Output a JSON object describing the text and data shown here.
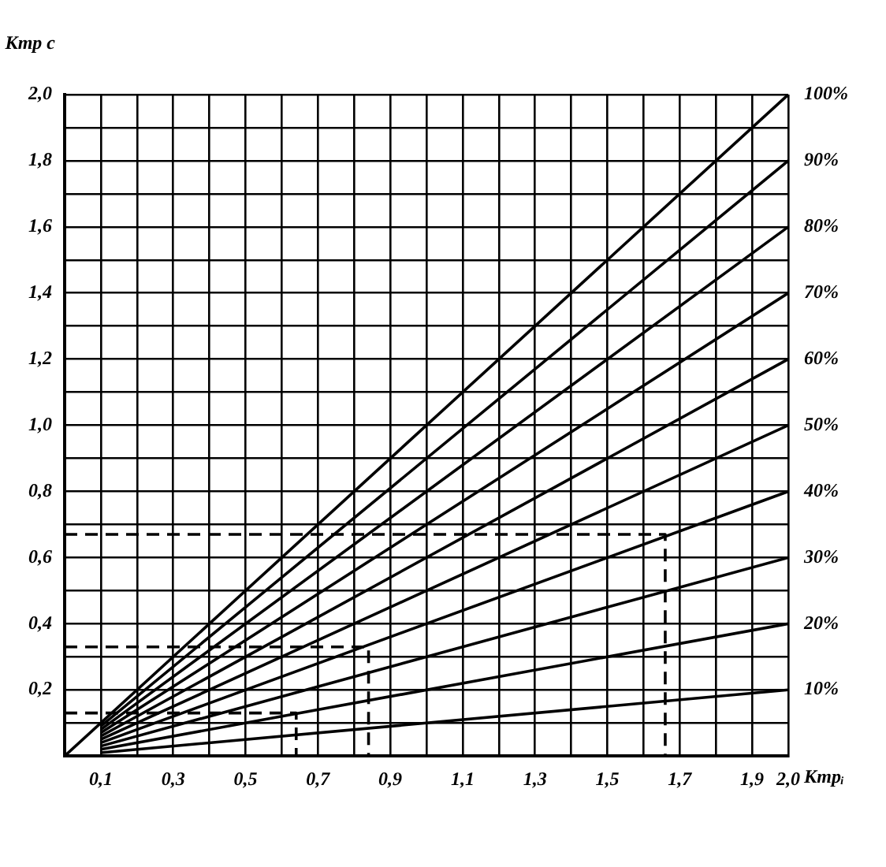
{
  "chart_data": {
    "type": "line",
    "xlabel": "Ктрᵢ",
    "ylabel": "Ктр с",
    "xlim": [
      0,
      2.0
    ],
    "ylim": [
      0,
      2.0
    ],
    "xticks": [
      {
        "value": 0,
        "label": null
      },
      {
        "value": 0.1,
        "label": "0,1"
      },
      {
        "value": 0.2,
        "label": null
      },
      {
        "value": 0.3,
        "label": "0,3"
      },
      {
        "value": 0.4,
        "label": null
      },
      {
        "value": 0.5,
        "label": "0,5"
      },
      {
        "value": 0.6,
        "label": null
      },
      {
        "value": 0.7,
        "label": "0,7"
      },
      {
        "value": 0.8,
        "label": null
      },
      {
        "value": 0.9,
        "label": "0,9"
      },
      {
        "value": 1.0,
        "label": null
      },
      {
        "value": 1.1,
        "label": "1,1"
      },
      {
        "value": 1.2,
        "label": null
      },
      {
        "value": 1.3,
        "label": "1,3"
      },
      {
        "value": 1.4,
        "label": null
      },
      {
        "value": 1.5,
        "label": "1,5"
      },
      {
        "value": 1.6,
        "label": null
      },
      {
        "value": 1.7,
        "label": "1,7"
      },
      {
        "value": 1.8,
        "label": null
      },
      {
        "value": 1.9,
        "label": "1,9"
      },
      {
        "value": 2.0,
        "label": "2,0"
      }
    ],
    "yticks": [
      {
        "value": 0,
        "label": null
      },
      {
        "value": 0.1,
        "label": null
      },
      {
        "value": 0.2,
        "label": "0,2"
      },
      {
        "value": 0.3,
        "label": null
      },
      {
        "value": 0.4,
        "label": "0,4"
      },
      {
        "value": 0.5,
        "label": null
      },
      {
        "value": 0.6,
        "label": "0,6"
      },
      {
        "value": 0.7,
        "label": null
      },
      {
        "value": 0.8,
        "label": "0,8"
      },
      {
        "value": 0.9,
        "label": null
      },
      {
        "value": 1.0,
        "label": "1,0"
      },
      {
        "value": 1.1,
        "label": null
      },
      {
        "value": 1.2,
        "label": "1,2"
      },
      {
        "value": 1.3,
        "label": null
      },
      {
        "value": 1.4,
        "label": "1,4"
      },
      {
        "value": 1.5,
        "label": null
      },
      {
        "value": 1.6,
        "label": "1,6"
      },
      {
        "value": 1.7,
        "label": null
      },
      {
        "value": 1.8,
        "label": "1,8"
      },
      {
        "value": 1.9,
        "label": null
      },
      {
        "value": 2.0,
        "label": "2,0"
      }
    ],
    "grid": true,
    "legend": false,
    "marker": "none",
    "line_style": "solid",
    "series": [
      {
        "name": "10%",
        "color": "#000000",
        "x": [
          0.1,
          2.0
        ],
        "values": [
          0.01,
          0.2
        ]
      },
      {
        "name": "20%",
        "color": "#000000",
        "x": [
          0.1,
          2.0
        ],
        "values": [
          0.02,
          0.4
        ]
      },
      {
        "name": "30%",
        "color": "#000000",
        "x": [
          0.1,
          2.0
        ],
        "values": [
          0.03,
          0.6
        ]
      },
      {
        "name": "40%",
        "color": "#000000",
        "x": [
          0.1,
          2.0
        ],
        "values": [
          0.04,
          0.8
        ]
      },
      {
        "name": "50%",
        "color": "#000000",
        "x": [
          0.1,
          2.0
        ],
        "values": [
          0.05,
          1.0
        ]
      },
      {
        "name": "60%",
        "color": "#000000",
        "x": [
          0.1,
          2.0
        ],
        "values": [
          0.06,
          1.2
        ]
      },
      {
        "name": "70%",
        "color": "#000000",
        "x": [
          0.1,
          2.0
        ],
        "values": [
          0.07,
          1.4
        ]
      },
      {
        "name": "80%",
        "color": "#000000",
        "x": [
          0.1,
          2.0
        ],
        "values": [
          0.08,
          1.6
        ]
      },
      {
        "name": "90%",
        "color": "#000000",
        "x": [
          0.1,
          2.0
        ],
        "values": [
          0.09,
          1.8
        ]
      },
      {
        "name": "100%",
        "color": "#000000",
        "x": [
          0,
          2.0
        ],
        "values": [
          0,
          2.0
        ]
      },
      {
        "color": "#000000",
        "line_style": "dashed",
        "x": [
          0,
          1.66,
          1.66
        ],
        "values": [
          0.67,
          0.67,
          0
        ]
      },
      {
        "color": "#000000",
        "line_style": "dashed",
        "x": [
          0,
          0.84,
          0.84
        ],
        "values": [
          0.33,
          0.33,
          0
        ]
      },
      {
        "color": "#000000",
        "line_style": "dashed",
        "x": [
          0,
          0.64,
          0.64
        ],
        "values": [
          0.13,
          0.13,
          0
        ]
      }
    ]
  }
}
